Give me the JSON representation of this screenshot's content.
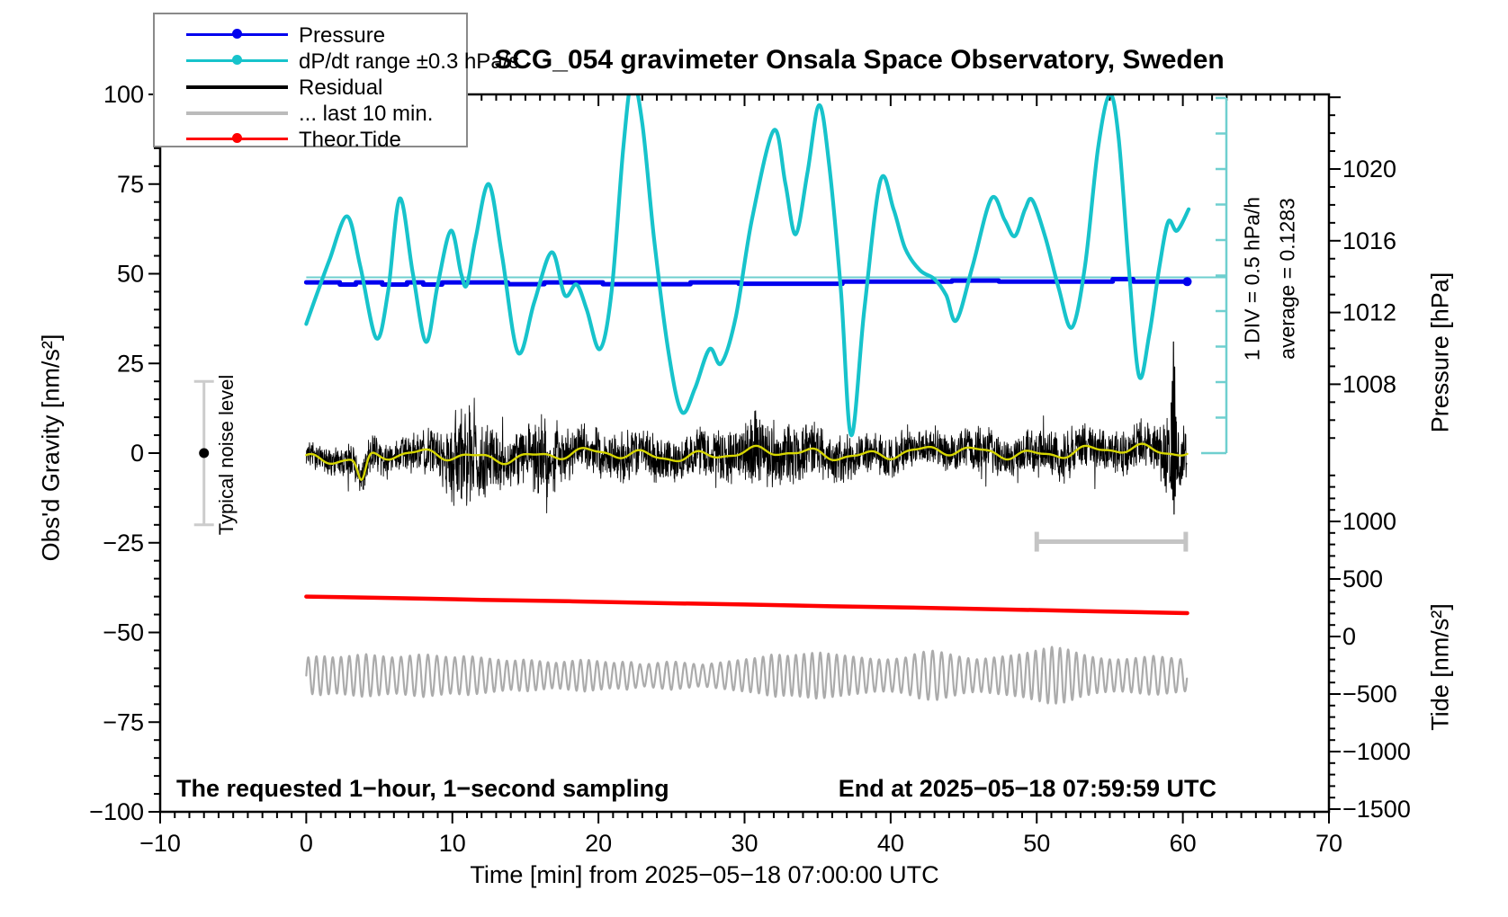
{
  "title": "SCG_054 gravimeter Onsala Space Observatory, Sweden",
  "legend": {
    "items": [
      {
        "label": "Pressure",
        "color": "#0000ee",
        "dot": true
      },
      {
        "label": "dP/dt range ±0.3 hPa/s",
        "color": "#17c3cb",
        "dot": true
      },
      {
        "label": "Residual",
        "color": "#000000",
        "dot": false
      },
      {
        "label": "... last 10 min.",
        "color": "#bbbbbb",
        "dot": false
      },
      {
        "label": "Theor.Tide",
        "color": "#ff0000",
        "dot": true
      }
    ]
  },
  "axes": {
    "x": {
      "label": "Time [min] from 2025−05−18 07:00:00 UTC",
      "min": -10,
      "max": 70,
      "major_step": 10,
      "minor_step": 1,
      "tick_labels": [
        "−10",
        "0",
        "10",
        "20",
        "30",
        "40",
        "50",
        "60",
        "70"
      ]
    },
    "gravity": {
      "label": "Obs'd Gravity [nm/s²]",
      "min": -100,
      "max": 100,
      "major_step": 25,
      "minor_step": 5,
      "tick_labels": [
        "100",
        "75",
        "50",
        "25",
        "0",
        "−25",
        "−50",
        "−75",
        "−100"
      ]
    },
    "pressure": {
      "label": "Pressure [hPa]",
      "major_labels": [
        1020,
        1016,
        1012,
        1008
      ],
      "minor_step_hpa": 1,
      "tick_labels": [
        "1020",
        "1016",
        "1012",
        "1008"
      ]
    },
    "tide": {
      "label": "Tide [nm/s²]",
      "major_labels": [
        1000,
        500,
        0,
        -500,
        -1000,
        -1500
      ],
      "minor_step": 100,
      "tick_labels": [
        "1000",
        "500",
        "0",
        "−500",
        "−1000",
        "−1500"
      ]
    }
  },
  "annotations": {
    "div_scale": "1 DIV = 0.5 hPa/h",
    "average": "average = 0.1283",
    "noise_label": "Typical noise level",
    "bottom_left": "The requested 1−hour, 1−second sampling",
    "bottom_right": "End at 2025−05−18 07:59:59 UTC"
  },
  "colors": {
    "pressure_blue": "#0000ee",
    "dpdt_cyan": "#17c3cb",
    "ref_cyan": "#6fcfcf",
    "residual_black": "#000000",
    "residual_smooth_yellow": "#d6d600",
    "last10_gray": "#ababab",
    "last10_bar_gray": "#c4c4c4",
    "noise_bar_gray": "#cccccc",
    "tide_red": "#ff0000",
    "frame_black": "#000000"
  },
  "chart_data": {
    "type": "line",
    "x_range": [
      -10,
      70
    ],
    "gravity_range": [
      -100,
      100
    ],
    "pressure_axis_labels_hpa": [
      1020,
      1016,
      1012,
      1008
    ],
    "tide_axis_labels_nms2": [
      1000,
      500,
      0,
      -500,
      -1000,
      -1500
    ],
    "grid": false,
    "legend_position": "top-left",
    "dpdt_average_hpa_per_h": 0.1283,
    "dpdt_div_scale_hpa_per_h": 0.5,
    "pressure_hpa_avg": 1013.7,
    "noise_seed": 7,
    "series": {
      "dpdt_cyan_gravity_units": [
        [
          0,
          36
        ],
        [
          0.7,
          44
        ],
        [
          1.6,
          54
        ],
        [
          2.8,
          66
        ],
        [
          3.7,
          52
        ],
        [
          4.8,
          32
        ],
        [
          5.6,
          45
        ],
        [
          6.4,
          71
        ],
        [
          7.3,
          50
        ],
        [
          8.2,
          31
        ],
        [
          9.0,
          47
        ],
        [
          9.9,
          62
        ],
        [
          10.6,
          50
        ],
        [
          11.0,
          47
        ],
        [
          11.6,
          60
        ],
        [
          12.5,
          75
        ],
        [
          13.4,
          55
        ],
        [
          14.5,
          28
        ],
        [
          15.6,
          42
        ],
        [
          16.8,
          56
        ],
        [
          17.7,
          44
        ],
        [
          18.5,
          47
        ],
        [
          19.2,
          40
        ],
        [
          20.1,
          29
        ],
        [
          20.9,
          45
        ],
        [
          21.7,
          85
        ],
        [
          22.3,
          104
        ],
        [
          23.0,
          92
        ],
        [
          23.8,
          60
        ],
        [
          24.8,
          28
        ],
        [
          25.7,
          11.5
        ],
        [
          26.6,
          18
        ],
        [
          27.6,
          29
        ],
        [
          28.4,
          25
        ],
        [
          29.4,
          38
        ],
        [
          30.5,
          65
        ],
        [
          32.0,
          90
        ],
        [
          32.8,
          75
        ],
        [
          33.5,
          61
        ],
        [
          34.3,
          78
        ],
        [
          35.1,
          97
        ],
        [
          35.8,
          80
        ],
        [
          36.6,
          45
        ],
        [
          37.3,
          5
        ],
        [
          38.2,
          40
        ],
        [
          39.3,
          76
        ],
        [
          40.2,
          68
        ],
        [
          41.0,
          57
        ],
        [
          42.0,
          51
        ],
        [
          43.0,
          48.5
        ],
        [
          43.8,
          44
        ],
        [
          44.5,
          37
        ],
        [
          45.6,
          52
        ],
        [
          46.9,
          71
        ],
        [
          47.8,
          65
        ],
        [
          48.5,
          60.5
        ],
        [
          49.2,
          68
        ],
        [
          49.7,
          70.5
        ],
        [
          50.6,
          60
        ],
        [
          51.5,
          46
        ],
        [
          52.4,
          35
        ],
        [
          53.3,
          52
        ],
        [
          54.2,
          85
        ],
        [
          55.0,
          100
        ],
        [
          55.6,
          88
        ],
        [
          56.3,
          52
        ],
        [
          57.0,
          21.5
        ],
        [
          57.7,
          33
        ],
        [
          58.4,
          52
        ],
        [
          59.0,
          64.5
        ],
        [
          59.6,
          62
        ],
        [
          60.4,
          68
        ]
      ],
      "dpdt_reference_level_gravity": 49,
      "pressure_steps_gravity_units": [
        [
          0,
          47.6
        ],
        [
          2.3,
          47.6
        ],
        [
          2.3,
          47.0
        ],
        [
          3.4,
          47.0
        ],
        [
          3.4,
          47.6
        ],
        [
          5.2,
          47.6
        ],
        [
          5.2,
          47.0
        ],
        [
          6.9,
          47.0
        ],
        [
          6.9,
          47.6
        ],
        [
          8.0,
          47.6
        ],
        [
          8.0,
          47.0
        ],
        [
          9.3,
          47.0
        ],
        [
          9.3,
          47.6
        ],
        [
          13.8,
          47.6
        ],
        [
          13.8,
          47.1
        ],
        [
          16.3,
          47.1
        ],
        [
          16.3,
          47.6
        ],
        [
          20.3,
          47.6
        ],
        [
          20.3,
          47.1
        ],
        [
          26.3,
          47.1
        ],
        [
          26.3,
          47.6
        ],
        [
          29.6,
          47.6
        ],
        [
          29.6,
          47.2
        ],
        [
          36.7,
          47.2
        ],
        [
          36.7,
          47.8
        ],
        [
          44.2,
          47.8
        ],
        [
          44.2,
          48.1
        ],
        [
          47.4,
          48.1
        ],
        [
          47.4,
          47.8
        ],
        [
          55.2,
          47.8
        ],
        [
          55.2,
          48.5
        ],
        [
          56.6,
          48.5
        ],
        [
          56.6,
          47.8
        ],
        [
          60.3,
          47.8
        ]
      ],
      "theor_tide_gravity_units": [
        [
          0,
          -40.0
        ],
        [
          6,
          -40.4
        ],
        [
          12,
          -40.9
        ],
        [
          18,
          -41.3
        ],
        [
          24,
          -41.8
        ],
        [
          30,
          -42.2
        ],
        [
          36,
          -42.7
        ],
        [
          42,
          -43.1
        ],
        [
          48,
          -43.6
        ],
        [
          54,
          -44.1
        ],
        [
          60.3,
          -44.6
        ]
      ],
      "theor_tide_approx_nms2": {
        "start": 347,
        "end": 203
      },
      "residual": {
        "t_range": [
          0,
          60.3
        ],
        "baseline": -1.1,
        "trend_per_min": 0.028,
        "smooth_components": [
          [
            1.1,
            1.65,
            1.2
          ],
          [
            0.8,
            0.52,
            4.0
          ],
          [
            0.45,
            3.1,
            0.3
          ]
        ],
        "smooth_dip": {
          "t": 3.8,
          "depth": 7,
          "width": 0.15
        },
        "envelope_per_min": [
          4,
          4.5,
          5,
          6,
          6,
          5.5,
          5,
          6,
          7,
          9,
          14,
          17,
          13,
          9,
          8,
          9,
          13,
          11,
          8,
          7,
          7,
          7,
          8,
          8,
          7,
          6,
          7,
          8,
          9,
          9,
          10,
          11,
          11,
          10,
          9,
          9,
          8,
          8,
          7,
          7,
          7,
          6,
          6,
          6,
          6,
          6,
          7,
          7,
          6,
          6,
          7,
          8,
          8,
          7,
          7,
          7,
          7,
          7,
          8,
          12,
          10
        ],
        "end_spikes": [
          [
            59.2,
            14
          ],
          [
            59.24,
            -10
          ],
          [
            59.28,
            20
          ],
          [
            59.32,
            -13
          ],
          [
            59.36,
            31
          ],
          [
            59.4,
            -17
          ],
          [
            59.44,
            24
          ],
          [
            59.48,
            -12
          ],
          [
            59.52,
            10
          ]
        ]
      },
      "residual_last10_gray": {
        "t_range": [
          0,
          60.3
        ],
        "center_gravity": -62,
        "period_min": 0.585,
        "phase_mod": [
          1.5,
          0.37
        ],
        "envelope_per_min": [
          5,
          5.5,
          5,
          5.5,
          6,
          5.5,
          5,
          5.5,
          6,
          5.5,
          5,
          5.5,
          5,
          4.5,
          4,
          4.5,
          4,
          3.5,
          4,
          4.5,
          4,
          3.5,
          4,
          3,
          3.5,
          4,
          3.5,
          3,
          3.5,
          4,
          4.5,
          5,
          6,
          5.5,
          6,
          6.5,
          6,
          5.5,
          5,
          4.5,
          4.5,
          5,
          6.5,
          7,
          6,
          5,
          4.5,
          5,
          5.5,
          6,
          7,
          8,
          7.5,
          6,
          5,
          4.5,
          4.5,
          5,
          5.5,
          5,
          4.5
        ]
      },
      "last10_window_bar": {
        "t_start": 50,
        "t_end": 60.2,
        "gravity_level": -24.7
      },
      "typical_noise_level": {
        "t": -7,
        "center_gravity": 0,
        "half_range_gravity": 20
      }
    }
  }
}
